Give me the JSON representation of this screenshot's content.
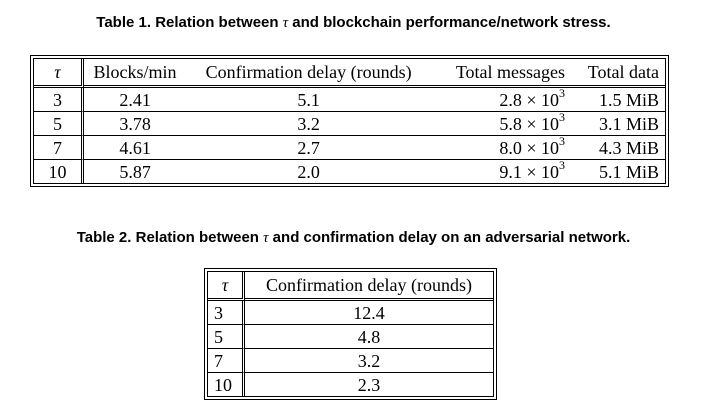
{
  "table1": {
    "caption_prefix": "Table 1. Relation between ",
    "caption_symbol": "τ",
    "caption_suffix": " and blockchain performance/network stress.",
    "headers": [
      "τ",
      "Blocks/min",
      "Confirmation delay (rounds)",
      "Total messages",
      "Total data"
    ],
    "rows": [
      {
        "tau": "3",
        "blocks": "2.41",
        "delay": "5.1",
        "msg_mant": "2.8",
        "msg_exp": "3",
        "data": "1.5 MiB"
      },
      {
        "tau": "5",
        "blocks": "3.78",
        "delay": "3.2",
        "msg_mant": "5.8",
        "msg_exp": "3",
        "data": "3.1 MiB"
      },
      {
        "tau": "7",
        "blocks": "4.61",
        "delay": "2.7",
        "msg_mant": "8.0",
        "msg_exp": "3",
        "data": "4.3 MiB"
      },
      {
        "tau": "10",
        "blocks": "5.87",
        "delay": "2.0",
        "msg_mant": "9.1",
        "msg_exp": "3",
        "data": "5.1 MiB"
      }
    ],
    "times_symbol": "× 10"
  },
  "table2": {
    "caption_prefix": "Table 2. Relation between ",
    "caption_symbol": "τ",
    "caption_suffix": " and confirmation delay on an adversarial network.",
    "headers": [
      "τ",
      "Confirmation delay (rounds)"
    ],
    "rows": [
      {
        "tau": "3",
        "delay": "12.4"
      },
      {
        "tau": "5",
        "delay": "4.8"
      },
      {
        "tau": "7",
        "delay": "3.2"
      },
      {
        "tau": "10",
        "delay": "2.3"
      }
    ]
  }
}
